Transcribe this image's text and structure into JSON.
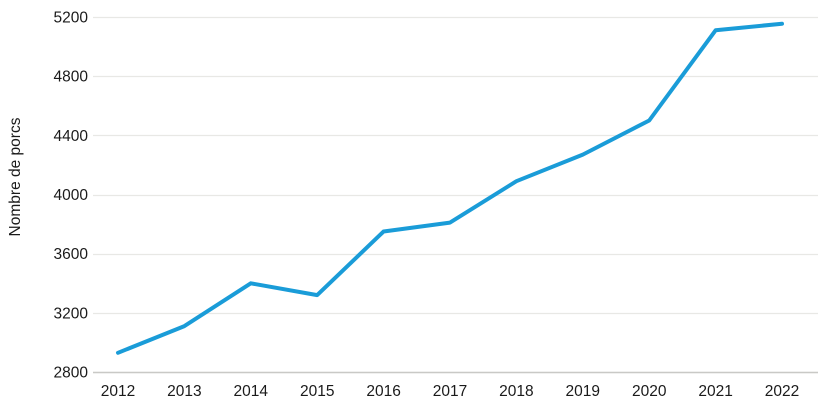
{
  "chart_data": {
    "type": "line",
    "title": "",
    "xlabel": "",
    "ylabel": "Nombre de porcs",
    "categories": [
      "2012",
      "2013",
      "2014",
      "2015",
      "2016",
      "2017",
      "2018",
      "2019",
      "2020",
      "2021",
      "2022"
    ],
    "series": [
      {
        "name": "Nombre de porcs",
        "values": [
          2930,
          3110,
          3400,
          3320,
          3750,
          3810,
          4090,
          4270,
          4500,
          5110,
          5155
        ]
      }
    ],
    "ylim": [
      2800,
      5200
    ],
    "yticks": [
      2800,
      3200,
      3600,
      4000,
      4400,
      4800,
      5200
    ],
    "grid": "horizontal-only",
    "legend_position": "none",
    "colors": {
      "line": "#1a9cd8",
      "grid": "#e8e8e5",
      "axis": "#c9c9c6",
      "text": "#1a1a1a",
      "background": "#ffffff"
    }
  }
}
